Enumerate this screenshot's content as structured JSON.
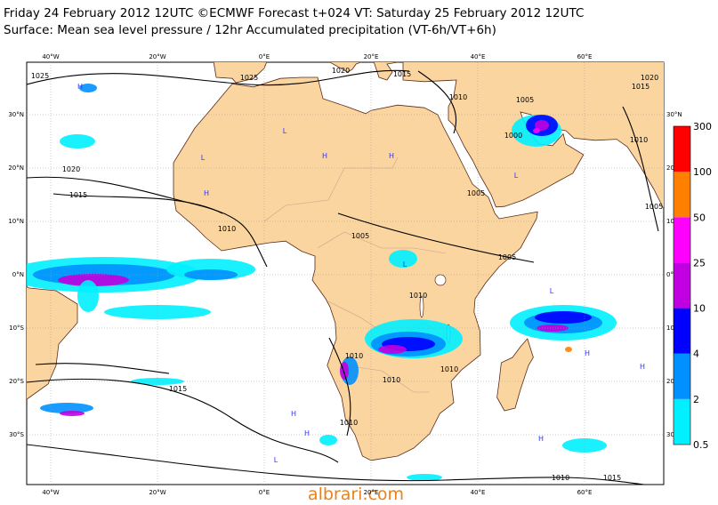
{
  "header": {
    "title": "Friday 24 February 2012 12UTC ©ECMWF Forecast t+024 VT: Saturday 25 February 2012 12UTC",
    "subtitle": "Surface: Mean sea level pressure / 12hr Accumulated precipitation (VT-6h/VT+6h)"
  },
  "map": {
    "longitudes": [
      "40°W",
      "20°W",
      "0°E",
      "20°E",
      "40°E",
      "60°E"
    ],
    "latitudes": [
      "30°N",
      "20°N",
      "10°N",
      "0°N",
      "10°S",
      "20°S",
      "30°S"
    ],
    "isobar_labels": [
      "1025",
      "1025",
      "1020",
      "1015",
      "1010",
      "1005",
      "1015",
      "1020",
      "1020",
      "1015",
      "1010",
      "1005",
      "1005",
      "1005",
      "1010",
      "1005",
      "1000",
      "1010",
      "1010",
      "1010",
      "1010",
      "1010",
      "1015",
      "1010",
      "1015"
    ],
    "centers": [
      "H",
      "H",
      "L",
      "L",
      "H",
      "H",
      "L",
      "L",
      "H",
      "L",
      "H",
      "H",
      "H",
      "L",
      "H"
    ]
  },
  "colorbar": {
    "levels": [
      0.5,
      2,
      4,
      10,
      25,
      50,
      100,
      300
    ],
    "colors": [
      "#00f0ff",
      "#0090ff",
      "#0000ff",
      "#c000e0",
      "#ff00ff",
      "#ff8000",
      "#ff0000"
    ]
  },
  "watermark": "albrari.com"
}
